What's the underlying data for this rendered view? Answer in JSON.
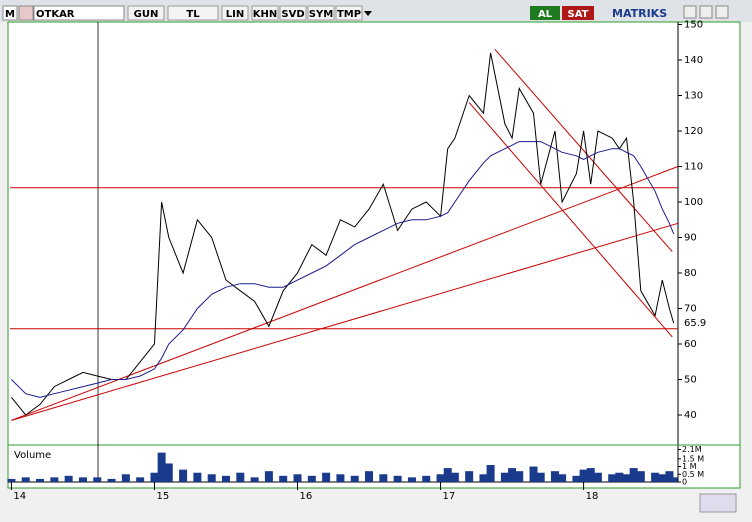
{
  "toolbar": {
    "logo": "M",
    "symbol": "OTKAR",
    "buttons": [
      "GUN",
      "TL",
      "LIN",
      "KHN",
      "SVD",
      "SYM",
      "TMP"
    ],
    "buy": "AL",
    "sell": "SAT",
    "brand": "MATRIKS"
  },
  "chart_data": {
    "type": "line",
    "x": [
      14.0,
      14.1,
      14.2,
      14.3,
      14.4,
      14.5,
      14.6,
      14.7,
      14.8,
      14.9,
      15.0,
      15.05,
      15.1,
      15.2,
      15.3,
      15.4,
      15.5,
      15.6,
      15.7,
      15.8,
      15.9,
      16.0,
      16.1,
      16.2,
      16.3,
      16.4,
      16.5,
      16.6,
      16.7,
      16.8,
      16.9,
      17.0,
      17.05,
      17.1,
      17.2,
      17.3,
      17.35,
      17.45,
      17.5,
      17.55,
      17.65,
      17.7,
      17.8,
      17.85,
      17.95,
      18.0,
      18.05,
      18.1,
      18.2,
      18.25,
      18.3,
      18.35,
      18.4,
      18.5,
      18.55,
      18.6,
      18.63
    ],
    "series": [
      {
        "color": "#000000",
        "values": [
          45,
          40,
          43,
          48,
          50,
          52,
          51,
          50,
          50,
          55,
          60,
          100,
          90,
          80,
          95,
          90,
          78,
          75,
          72,
          65,
          75,
          80,
          88,
          85,
          95,
          93,
          98,
          105,
          92,
          98,
          100,
          96,
          115,
          118,
          130,
          125,
          142,
          122,
          118,
          132,
          125,
          105,
          120,
          100,
          108,
          120,
          105,
          120,
          118,
          115,
          118,
          100,
          75,
          68,
          78,
          70,
          65.9
        ]
      },
      {
        "color": "#1a1a8c",
        "values": [
          50,
          46,
          45,
          46,
          47,
          48,
          49,
          50,
          50,
          51,
          53,
          56,
          60,
          64,
          70,
          74,
          76,
          77,
          77,
          76,
          76,
          78,
          80,
          82,
          85,
          88,
          90,
          92,
          94,
          95,
          95,
          96,
          97,
          100,
          106,
          111,
          113,
          115,
          116,
          117,
          117,
          117,
          115,
          114,
          113,
          112,
          113,
          114,
          115,
          115,
          114,
          113,
          110,
          103,
          98,
          94,
          91
        ]
      }
    ],
    "last_price": 65.9,
    "xlim": [
      13.99,
      18.66
    ],
    "xticks": [
      14,
      15,
      16,
      17,
      18
    ],
    "ylim": [
      32.4,
      150.7
    ],
    "yticks": [
      40,
      50,
      60,
      70,
      80,
      90,
      100,
      110,
      120,
      130,
      140,
      150
    ],
    "hlines": [
      104,
      64.3
    ],
    "hline_color": "#cc0000",
    "trendlines": [
      {
        "x": [
          14.0,
          18.66
        ],
        "y": [
          38.5,
          110
        ]
      },
      {
        "x": [
          14.0,
          18.66
        ],
        "y": [
          38.5,
          94
        ]
      },
      {
        "x": [
          17.38,
          18.62
        ],
        "y": [
          143,
          86
        ]
      },
      {
        "x": [
          17.2,
          18.62
        ],
        "y": [
          128,
          62
        ]
      }
    ],
    "volume": {
      "name": "Volume",
      "color": "#1a3a8c",
      "values": [
        0.2,
        0.3,
        0.2,
        0.3,
        0.4,
        0.3,
        0.3,
        0.2,
        0.5,
        0.3,
        0.6,
        1.9,
        1.2,
        0.8,
        0.6,
        0.5,
        0.4,
        0.6,
        0.3,
        0.7,
        0.4,
        0.5,
        0.4,
        0.6,
        0.5,
        0.4,
        0.7,
        0.5,
        0.4,
        0.3,
        0.4,
        0.5,
        0.9,
        0.6,
        0.7,
        0.5,
        1.1,
        0.6,
        0.9,
        0.7,
        1.0,
        0.6,
        0.7,
        0.5,
        0.4,
        0.8,
        0.9,
        0.6,
        0.5,
        0.6,
        0.5,
        0.9,
        0.7,
        0.6,
        0.5,
        0.7,
        0.3
      ],
      "ylim": [
        0,
        2.2
      ],
      "yticks": [
        {
          "value": 0,
          "label": "0"
        },
        {
          "value": 0.5,
          "label": "0.5 M"
        },
        {
          "value": 1,
          "label": "1 M"
        },
        {
          "value": 1.5,
          "label": "1.5 M"
        },
        {
          "value": 2.1,
          "label": "2.1M"
        }
      ]
    }
  }
}
